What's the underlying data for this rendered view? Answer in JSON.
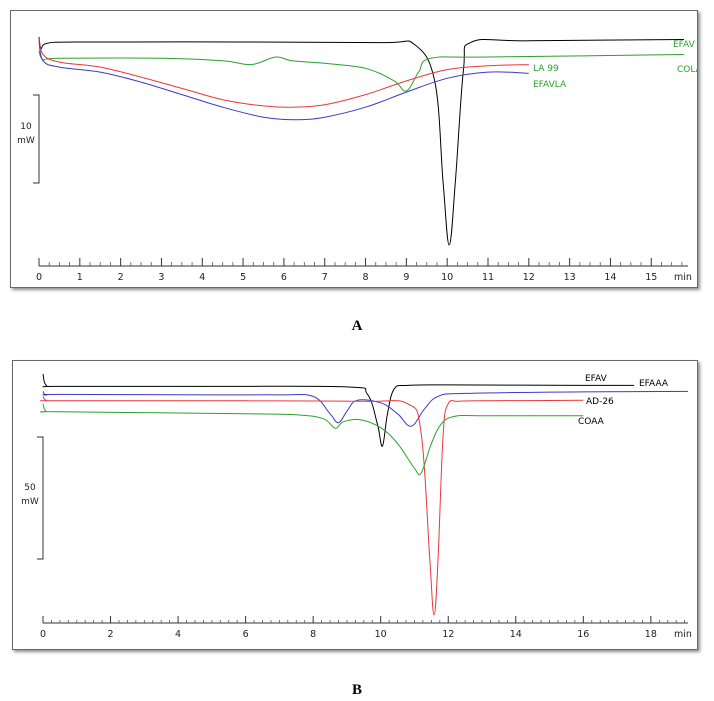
{
  "chart_data": [
    {
      "type": "line",
      "caption": "A",
      "xlabel": "min",
      "ylabel": "",
      "xlim": [
        0,
        15.9
      ],
      "x_ticks": [
        0,
        1,
        2,
        3,
        4,
        5,
        6,
        7,
        8,
        9,
        10,
        11,
        12,
        13,
        14,
        15
      ],
      "scale_bar": {
        "value": "10",
        "unit": "mW"
      },
      "grid": false,
      "legend": "inline labels at right end of curves",
      "series": [
        {
          "name": "EFAV",
          "color": "#000000",
          "points": [
            [
              0,
              -0.4
            ],
            [
              0.05,
              -1.3
            ],
            [
              0.2,
              -0.9
            ],
            [
              1,
              -0.8
            ],
            [
              5,
              -0.8
            ],
            [
              8.4,
              -0.85
            ],
            [
              9.2,
              -1.0
            ],
            [
              9.7,
              -4
            ],
            [
              9.9,
              -12
            ],
            [
              10.05,
              -17.0
            ],
            [
              10.2,
              -12
            ],
            [
              10.4,
              -3
            ],
            [
              10.6,
              -0.8
            ],
            [
              12,
              -0.7
            ],
            [
              15.8,
              -0.6
            ]
          ]
        },
        {
          "name": "COLA",
          "color": "#2ca02c",
          "points": [
            [
              0,
              -1.5
            ],
            [
              0.1,
              -2.2
            ],
            [
              0.5,
              -2.1
            ],
            [
              3,
              -2.1
            ],
            [
              4.5,
              -2.3
            ],
            [
              5.2,
              -2.6
            ],
            [
              5.8,
              -2.0
            ],
            [
              6.2,
              -2.3
            ],
            [
              7,
              -2.5
            ],
            [
              8,
              -2.9
            ],
            [
              8.7,
              -3.9
            ],
            [
              9.0,
              -4.7
            ],
            [
              9.3,
              -3.2
            ],
            [
              9.6,
              -2.1
            ],
            [
              11,
              -2.0
            ],
            [
              15.8,
              -1.8
            ]
          ]
        },
        {
          "name": "LA 99",
          "color": "#e8383d",
          "points": [
            [
              0,
              -0.5
            ],
            [
              0.1,
              -1.8
            ],
            [
              0.5,
              -2.4
            ],
            [
              1.5,
              -2.8
            ],
            [
              2.5,
              -3.6
            ],
            [
              3.5,
              -4.5
            ],
            [
              4.5,
              -5.4
            ],
            [
              5.5,
              -5.9
            ],
            [
              6.2,
              -6.0
            ],
            [
              7,
              -5.8
            ],
            [
              8,
              -5.0
            ],
            [
              9,
              -3.9
            ],
            [
              10,
              -3.0
            ],
            [
              11,
              -2.7
            ],
            [
              12,
              -2.6
            ]
          ]
        },
        {
          "name": "EFAVLA",
          "color": "#3a3ac8",
          "points": [
            [
              0,
              -0.7
            ],
            [
              0.1,
              -2.3
            ],
            [
              0.5,
              -2.8
            ],
            [
              1.5,
              -3.2
            ],
            [
              2.5,
              -4.0
            ],
            [
              3.5,
              -5.0
            ],
            [
              4.5,
              -6.0
            ],
            [
              5.5,
              -6.8
            ],
            [
              6.3,
              -7.0
            ],
            [
              7,
              -6.8
            ],
            [
              8,
              -6.0
            ],
            [
              9,
              -4.8
            ],
            [
              10,
              -3.7
            ],
            [
              11,
              -3.2
            ],
            [
              12,
              -3.3
            ]
          ]
        }
      ],
      "labels": [
        "EFAV",
        "LA 99",
        "EFAVLA",
        "COLA"
      ]
    },
    {
      "type": "line",
      "caption": "B",
      "xlabel": "min",
      "ylabel": "",
      "xlim": [
        0,
        19.1
      ],
      "x_ticks": [
        0,
        2,
        4,
        6,
        8,
        10,
        12,
        14,
        16,
        18
      ],
      "scale_bar": {
        "value": "50",
        "unit": "mW"
      },
      "grid": false,
      "legend": "inline labels at right end of curves",
      "series": [
        {
          "name": "EFAV",
          "color": "#000000",
          "points": [
            [
              0,
              2
            ],
            [
              0.1,
              -0.3
            ],
            [
              0.5,
              -0.5
            ],
            [
              5,
              -0.5
            ],
            [
              9,
              -0.6
            ],
            [
              9.6,
              -2
            ],
            [
              9.9,
              -8
            ],
            [
              10.05,
              -12.5
            ],
            [
              10.2,
              -6
            ],
            [
              10.4,
              -1
            ],
            [
              10.8,
              -0.3
            ],
            [
              12,
              -0.2
            ],
            [
              16,
              -0.3
            ],
            [
              17.5,
              -0.3
            ]
          ]
        },
        {
          "name": "EFAAA",
          "color": "#3a3ac8",
          "points": [
            [
              0,
              -1.5
            ],
            [
              0.1,
              -2.2
            ],
            [
              0.5,
              -2.1
            ],
            [
              5,
              -2.2
            ],
            [
              7,
              -2.2
            ],
            [
              8,
              -2.5
            ],
            [
              8.5,
              -6
            ],
            [
              8.75,
              -7.8
            ],
            [
              9.0,
              -5.5
            ],
            [
              9.3,
              -3.3
            ],
            [
              10,
              -3.8
            ],
            [
              10.5,
              -6
            ],
            [
              10.9,
              -8.5
            ],
            [
              11.3,
              -5
            ],
            [
              11.7,
              -2.5
            ],
            [
              12.5,
              -1.9
            ],
            [
              16,
              -1.6
            ],
            [
              19.1,
              -1.5
            ]
          ]
        },
        {
          "name": "AD-26",
          "color": "#e8383d",
          "points": [
            [
              0,
              -2.5
            ],
            [
              0.1,
              -3.3
            ],
            [
              0.5,
              -3.4
            ],
            [
              6,
              -3.4
            ],
            [
              9.5,
              -3.5
            ],
            [
              10.8,
              -4
            ],
            [
              11.2,
              -10
            ],
            [
              11.45,
              -35
            ],
            [
              11.58,
              -46.5
            ],
            [
              11.7,
              -35
            ],
            [
              11.85,
              -10
            ],
            [
              12,
              -4
            ],
            [
              12.3,
              -3.5
            ],
            [
              13,
              -3.4
            ],
            [
              16,
              -3.3
            ]
          ]
        },
        {
          "name": "COAA",
          "color": "#2ca02c",
          "points": [
            [
              0,
              -4
            ],
            [
              0.1,
              -5.5
            ],
            [
              0.5,
              -5.6
            ],
            [
              6,
              -6
            ],
            [
              7.5,
              -6.2
            ],
            [
              8.3,
              -7
            ],
            [
              8.65,
              -8.9
            ],
            [
              8.9,
              -7.6
            ],
            [
              9.4,
              -7.2
            ],
            [
              10,
              -8.8
            ],
            [
              10.5,
              -12
            ],
            [
              11.0,
              -17
            ],
            [
              11.2,
              -17.9
            ],
            [
              11.5,
              -12
            ],
            [
              11.8,
              -8
            ],
            [
              12.2,
              -6.5
            ],
            [
              13,
              -6.4
            ],
            [
              16,
              -6.4
            ]
          ]
        }
      ],
      "labels": [
        "EFAV",
        "EFAAA",
        "AD-26",
        "COAA"
      ]
    }
  ]
}
